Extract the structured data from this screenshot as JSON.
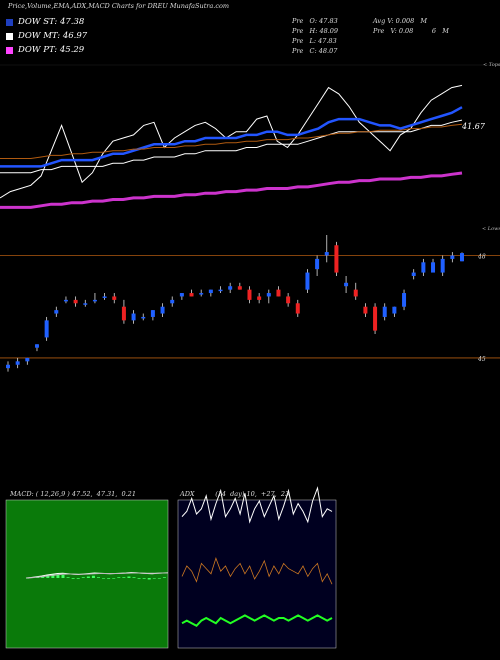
{
  "header": {
    "title": "Price,Volume,EMA,ADX,MACD Charts for DREU MunafaSutra.com",
    "legend": [
      {
        "label": "DOW ST: 47.38",
        "color": "#1f3fbf"
      },
      {
        "label": "DOW MT: 46.97",
        "color": "#ffffff"
      },
      {
        "label": "DOW PT: 45.29",
        "color": "#ff44ff"
      }
    ],
    "stats_left": [
      "Pre   O: 47.83",
      "Pre   H: 48.09",
      "Pre   L: 47.83",
      "Pre   C: 48.07"
    ],
    "stats_right": [
      "Avg V: 0.008   M",
      "Pre   V: 0.08         6   M"
    ]
  },
  "colors": {
    "up": "#2060ff",
    "down": "#ee2222",
    "ema_short": "#2255ff",
    "ema_mid": "#ffffff",
    "ema_long": "#cc33cc",
    "ema_brown": "#b05a10",
    "macd_bg": "#0a7a0a",
    "adx_bg": "#000020"
  },
  "chart_data": [
    {
      "type": "line",
      "name": "price_ema_panel",
      "right_labels": [
        "< Tops",
        "41.67",
        "< Lows"
      ],
      "series": [
        {
          "name": "Price",
          "values": [
            44.5,
            44.7,
            44.8,
            44.9,
            45.2,
            46.0,
            46.8,
            45.9,
            45.0,
            45.3,
            45.9,
            46.3,
            46.4,
            46.5,
            46.8,
            46.9,
            46.1,
            46.4,
            46.6,
            46.8,
            46.9,
            46.7,
            46.4,
            46.6,
            46.6,
            47.0,
            47.1,
            46.3,
            46.1,
            46.5,
            47.0,
            47.5,
            48.0,
            47.8,
            47.4,
            46.9,
            46.6,
            46.3,
            46.0,
            46.5,
            46.7,
            47.2,
            47.6,
            47.8,
            48.0,
            48.07
          ]
        },
        {
          "name": "EMA short",
          "values": [
            45.5,
            45.5,
            45.5,
            45.5,
            45.5,
            45.6,
            45.7,
            45.7,
            45.7,
            45.7,
            45.8,
            45.9,
            45.9,
            46.0,
            46.1,
            46.2,
            46.2,
            46.2,
            46.3,
            46.3,
            46.4,
            46.4,
            46.4,
            46.4,
            46.5,
            46.5,
            46.6,
            46.6,
            46.5,
            46.5,
            46.6,
            46.7,
            46.9,
            47.0,
            47.0,
            47.0,
            46.9,
            46.8,
            46.8,
            46.7,
            46.8,
            46.9,
            47.0,
            47.1,
            47.2,
            47.38
          ]
        },
        {
          "name": "EMA mid",
          "values": [
            45.3,
            45.3,
            45.3,
            45.3,
            45.4,
            45.4,
            45.5,
            45.5,
            45.5,
            45.5,
            45.5,
            45.6,
            45.6,
            45.7,
            45.7,
            45.8,
            45.8,
            45.8,
            45.9,
            45.9,
            46.0,
            46.0,
            46.0,
            46.0,
            46.1,
            46.1,
            46.2,
            46.2,
            46.2,
            46.2,
            46.3,
            46.4,
            46.5,
            46.6,
            46.6,
            46.6,
            46.6,
            46.6,
            46.6,
            46.6,
            46.6,
            46.7,
            46.8,
            46.8,
            46.9,
            46.97
          ]
        },
        {
          "name": "EMA long",
          "values": [
            44.2,
            44.2,
            44.2,
            44.2,
            44.25,
            44.3,
            44.3,
            44.35,
            44.35,
            44.4,
            44.4,
            44.45,
            44.45,
            44.5,
            44.5,
            44.55,
            44.55,
            44.55,
            44.6,
            44.6,
            44.65,
            44.65,
            44.7,
            44.7,
            44.75,
            44.75,
            44.8,
            44.8,
            44.8,
            44.85,
            44.85,
            44.9,
            44.95,
            45.0,
            45.0,
            45.05,
            45.05,
            45.1,
            45.1,
            45.1,
            45.15,
            45.15,
            45.2,
            45.2,
            45.25,
            45.29
          ]
        }
      ]
    },
    {
      "type": "candlestick",
      "name": "price_panel",
      "y_labels": [
        "48",
        "45"
      ],
      "candles": [
        {
          "o": 44.7,
          "h": 44.9,
          "l": 44.6,
          "c": 44.8
        },
        {
          "o": 44.8,
          "h": 45.0,
          "l": 44.7,
          "c": 44.9
        },
        {
          "o": 44.9,
          "h": 45.0,
          "l": 44.8,
          "c": 45.0
        },
        {
          "o": 45.3,
          "h": 45.4,
          "l": 45.2,
          "c": 45.4
        },
        {
          "o": 45.6,
          "h": 46.2,
          "l": 45.5,
          "c": 46.1
        },
        {
          "o": 46.3,
          "h": 46.5,
          "l": 46.2,
          "c": 46.4
        },
        {
          "o": 46.7,
          "h": 46.8,
          "l": 46.6,
          "c": 46.7
        },
        {
          "o": 46.7,
          "h": 46.8,
          "l": 46.5,
          "c": 46.6
        },
        {
          "o": 46.6,
          "h": 46.7,
          "l": 46.5,
          "c": 46.6
        },
        {
          "o": 46.7,
          "h": 46.9,
          "l": 46.6,
          "c": 46.7
        },
        {
          "o": 46.8,
          "h": 46.9,
          "l": 46.7,
          "c": 46.8
        },
        {
          "o": 46.8,
          "h": 46.9,
          "l": 46.6,
          "c": 46.7
        },
        {
          "o": 46.5,
          "h": 46.7,
          "l": 46.0,
          "c": 46.1
        },
        {
          "o": 46.1,
          "h": 46.4,
          "l": 46.0,
          "c": 46.3
        },
        {
          "o": 46.2,
          "h": 46.3,
          "l": 46.1,
          "c": 46.2
        },
        {
          "o": 46.2,
          "h": 46.4,
          "l": 46.1,
          "c": 46.4
        },
        {
          "o": 46.3,
          "h": 46.6,
          "l": 46.2,
          "c": 46.5
        },
        {
          "o": 46.6,
          "h": 46.8,
          "l": 46.5,
          "c": 46.7
        },
        {
          "o": 46.8,
          "h": 46.9,
          "l": 46.7,
          "c": 46.9
        },
        {
          "o": 46.9,
          "h": 47.0,
          "l": 46.8,
          "c": 46.8
        },
        {
          "o": 46.9,
          "h": 47.0,
          "l": 46.8,
          "c": 46.9
        },
        {
          "o": 46.9,
          "h": 47.0,
          "l": 46.8,
          "c": 47.0
        },
        {
          "o": 47.0,
          "h": 47.1,
          "l": 46.9,
          "c": 47.0
        },
        {
          "o": 47.0,
          "h": 47.2,
          "l": 46.9,
          "c": 47.1
        },
        {
          "o": 47.1,
          "h": 47.2,
          "l": 47.0,
          "c": 47.0
        },
        {
          "o": 47.0,
          "h": 47.1,
          "l": 46.6,
          "c": 46.7
        },
        {
          "o": 46.8,
          "h": 46.9,
          "l": 46.6,
          "c": 46.7
        },
        {
          "o": 46.8,
          "h": 47.0,
          "l": 46.6,
          "c": 46.9
        },
        {
          "o": 47.0,
          "h": 47.1,
          "l": 46.8,
          "c": 46.8
        },
        {
          "o": 46.8,
          "h": 46.9,
          "l": 46.5,
          "c": 46.6
        },
        {
          "o": 46.6,
          "h": 46.7,
          "l": 46.2,
          "c": 46.3
        },
        {
          "o": 47.0,
          "h": 47.6,
          "l": 46.9,
          "c": 47.5
        },
        {
          "o": 47.6,
          "h": 48.0,
          "l": 47.4,
          "c": 47.9
        },
        {
          "o": 48.0,
          "h": 48.6,
          "l": 47.8,
          "c": 48.1
        },
        {
          "o": 48.3,
          "h": 48.4,
          "l": 47.4,
          "c": 47.5
        },
        {
          "o": 47.1,
          "h": 47.4,
          "l": 46.9,
          "c": 47.2
        },
        {
          "o": 47.0,
          "h": 47.2,
          "l": 46.7,
          "c": 46.8
        },
        {
          "o": 46.5,
          "h": 46.6,
          "l": 46.2,
          "c": 46.3
        },
        {
          "o": 46.5,
          "h": 46.6,
          "l": 45.7,
          "c": 45.8
        },
        {
          "o": 46.2,
          "h": 46.6,
          "l": 46.1,
          "c": 46.5
        },
        {
          "o": 46.3,
          "h": 46.5,
          "l": 46.2,
          "c": 46.5
        },
        {
          "o": 46.5,
          "h": 47.0,
          "l": 46.4,
          "c": 46.9
        },
        {
          "o": 47.4,
          "h": 47.6,
          "l": 47.3,
          "c": 47.5
        },
        {
          "o": 47.5,
          "h": 47.9,
          "l": 47.4,
          "c": 47.8
        },
        {
          "o": 47.5,
          "h": 47.9,
          "l": 47.5,
          "c": 47.8
        },
        {
          "o": 47.5,
          "h": 48.0,
          "l": 47.4,
          "c": 47.9
        },
        {
          "o": 47.9,
          "h": 48.1,
          "l": 47.8,
          "c": 48.0
        },
        {
          "o": 47.83,
          "h": 48.09,
          "l": 47.83,
          "c": 48.07
        }
      ]
    },
    {
      "type": "line",
      "name": "macd_panel",
      "title": "MACD: ( 12,26,9 ) 47.52,  47.31,  0.21",
      "series": [
        {
          "name": "MACD",
          "values": [
            0.0,
            0.02,
            0.05,
            0.08,
            0.12,
            0.15,
            0.18,
            0.19,
            0.17,
            0.15,
            0.14,
            0.16,
            0.18,
            0.2,
            0.19,
            0.18,
            0.17,
            0.18,
            0.19,
            0.2,
            0.22,
            0.21,
            0.19,
            0.18,
            0.17,
            0.19,
            0.2,
            0.21
          ]
        },
        {
          "name": "Signal",
          "values": [
            0.0,
            0.01,
            0.03,
            0.05,
            0.08,
            0.1,
            0.13,
            0.15,
            0.16,
            0.16,
            0.15,
            0.15,
            0.16,
            0.17,
            0.18,
            0.18,
            0.18,
            0.18,
            0.18,
            0.19,
            0.2,
            0.2,
            0.2,
            0.19,
            0.19,
            0.19,
            0.2,
            0.2
          ]
        }
      ]
    },
    {
      "type": "line",
      "name": "adx_panel",
      "title": "ADX          (14  day) 10,  +27,  23",
      "series": [
        {
          "name": "+DI",
          "values": [
            25,
            27,
            32,
            26,
            28,
            33,
            24,
            30,
            35,
            25,
            28,
            32,
            26,
            34,
            23,
            28,
            31,
            25,
            29,
            33,
            24,
            29,
            35,
            26,
            30,
            27,
            23,
            31,
            36,
            25,
            28,
            27
          ]
        },
        {
          "name": "-DI",
          "values": [
            26,
            30,
            28,
            24,
            31,
            29,
            27,
            33,
            28,
            30,
            26,
            29,
            31,
            27,
            30,
            25,
            28,
            32,
            26,
            30,
            27,
            31,
            29,
            28,
            27,
            30,
            26,
            29,
            31,
            24,
            27,
            23
          ]
        },
        {
          "name": "ADX",
          "values": [
            8,
            9,
            8,
            7,
            9,
            10,
            9,
            8,
            10,
            9,
            8,
            9,
            10,
            11,
            10,
            9,
            10,
            11,
            10,
            9,
            10,
            10,
            9,
            10,
            11,
            10,
            9,
            10,
            11,
            10,
            9,
            10
          ]
        }
      ]
    }
  ]
}
